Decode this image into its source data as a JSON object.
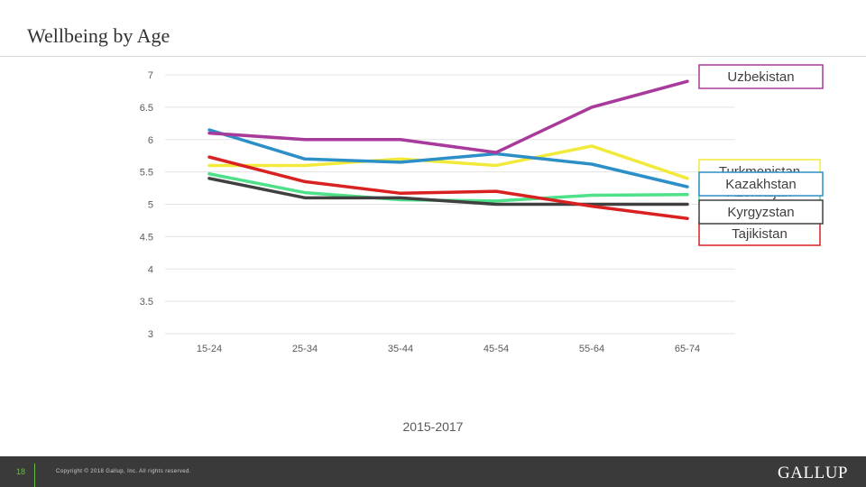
{
  "slide": {
    "title": "Wellbeing by Age",
    "number": "18",
    "copyright": "Copyright © 2018 Gallup, Inc. All rights reserved.",
    "logo": "GALLUP"
  },
  "chart_data": {
    "type": "line",
    "xlabel": "2015-2017",
    "ylabel": "",
    "categories": [
      "15-24",
      "25-34",
      "35-44",
      "45-54",
      "55-64",
      "65-74"
    ],
    "ylim": [
      3,
      7
    ],
    "yticks": [
      "3",
      "3.5",
      "4",
      "4.5",
      "5",
      "5.5",
      "6",
      "6.5",
      "7"
    ],
    "grid": true,
    "legend": "series end labels at right",
    "series": [
      {
        "name": "Uzbekistan",
        "color": "#a83a9b",
        "values": [
          6.1,
          6.0,
          6.0,
          5.8,
          6.5,
          6.9
        ]
      },
      {
        "name": "Turkmenistan",
        "color": "#f2ea3a",
        "values": [
          5.6,
          5.6,
          5.7,
          5.6,
          5.9,
          5.4
        ]
      },
      {
        "name": "Kazakhstan",
        "color": "#2c8fc7",
        "values": [
          6.15,
          5.7,
          5.65,
          5.78,
          5.62,
          5.27
        ]
      },
      {
        "name": "Azerbaijan",
        "color": "#4fe08a",
        "values": [
          5.47,
          5.18,
          5.07,
          5.05,
          5.14,
          5.15
        ]
      },
      {
        "name": "Kyrgyzstan",
        "color": "#404040",
        "values": [
          5.4,
          5.1,
          5.1,
          5.0,
          5.0,
          5.0
        ]
      },
      {
        "name": "Tajikistan",
        "color": "#d92121",
        "values": [
          5.73,
          5.35,
          5.17,
          5.2,
          4.97,
          4.78
        ]
      }
    ]
  }
}
